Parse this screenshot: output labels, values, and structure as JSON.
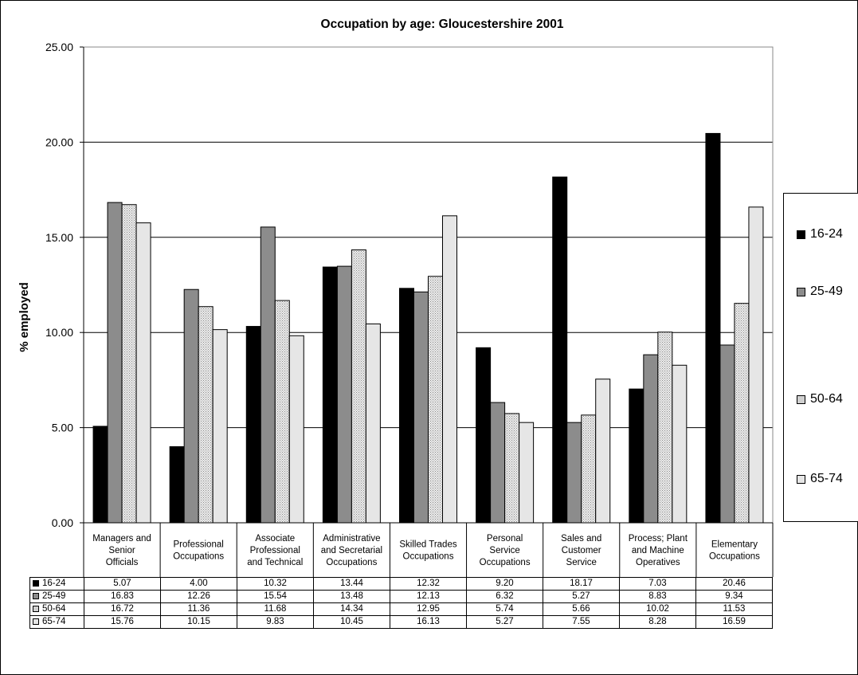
{
  "chart_data": {
    "type": "bar",
    "title": "Occupation by age: Gloucestershire 2001",
    "ylabel": "% employed",
    "xlabel": "",
    "ylim": [
      0,
      25
    ],
    "yticks": [
      "0.00",
      "5.00",
      "10.00",
      "15.00",
      "20.00",
      "25.00"
    ],
    "grid": true,
    "legend_position": "right",
    "categories": [
      "Managers and Senior Officials",
      "Professional Occupations",
      "Associate Professional and Technical",
      "Administrative and Secretarial Occupations",
      "Skilled Trades Occupations",
      "Personal Service Occupations",
      "Sales and Customer Service",
      "Process; Plant and Machine Operatives",
      "Elementary Occupations"
    ],
    "category_lines": [
      [
        "Managers and",
        "Senior",
        "Officials"
      ],
      [
        "Professional",
        "Occupations"
      ],
      [
        "Associate",
        "Professional",
        "and Technical"
      ],
      [
        "Administrative",
        "and Secretarial",
        "Occupations"
      ],
      [
        "Skilled Trades",
        "Occupations"
      ],
      [
        "Personal",
        "Service",
        "Occupations"
      ],
      [
        "Sales and",
        "Customer",
        "Service"
      ],
      [
        "Process; Plant",
        "and Machine",
        "Operatives"
      ],
      [
        "Elementary",
        "Occupations"
      ]
    ],
    "series": [
      {
        "name": "16-24",
        "color": "#000000",
        "values": [
          5.07,
          4.0,
          10.32,
          13.44,
          12.32,
          9.2,
          18.17,
          7.03,
          20.46
        ],
        "labels": [
          "5.07",
          "4.00",
          "10.32",
          "13.44",
          "12.32",
          "9.20",
          "18.17",
          "7.03",
          "20.46"
        ]
      },
      {
        "name": "25-49",
        "color": "#8c8c8c",
        "values": [
          16.83,
          12.26,
          15.54,
          13.48,
          12.13,
          6.32,
          5.27,
          8.83,
          9.34
        ],
        "labels": [
          "16.83",
          "12.26",
          "15.54",
          "13.48",
          "12.13",
          "6.32",
          "5.27",
          "8.83",
          "9.34"
        ]
      },
      {
        "name": "50-64",
        "color": "#d0d0d0",
        "values": [
          16.72,
          11.36,
          11.68,
          14.34,
          12.95,
          5.74,
          5.66,
          10.02,
          11.53
        ],
        "labels": [
          "16.72",
          "11.36",
          "11.68",
          "14.34",
          "12.95",
          "5.74",
          "5.66",
          "10.02",
          "11.53"
        ]
      },
      {
        "name": "65-74",
        "color": "#e6e6e6",
        "values": [
          15.76,
          10.15,
          9.83,
          10.45,
          16.13,
          5.27,
          7.55,
          8.28,
          16.59
        ],
        "labels": [
          "15.76",
          "10.15",
          "9.83",
          "10.45",
          "16.13",
          "5.27",
          "7.55",
          "8.28",
          "16.59"
        ]
      }
    ]
  }
}
